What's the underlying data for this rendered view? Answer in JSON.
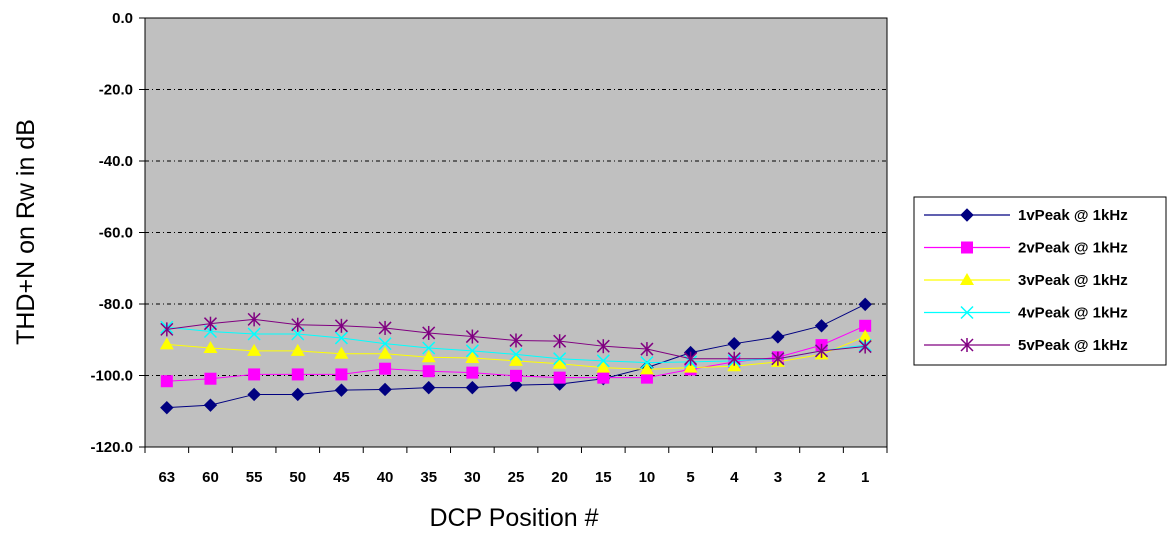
{
  "chart_data": {
    "type": "line",
    "title": "",
    "xlabel": "DCP Position #",
    "ylabel": "THD+N on Rw in dB",
    "categories": [
      "63",
      "60",
      "55",
      "50",
      "45",
      "40",
      "35",
      "30",
      "25",
      "20",
      "15",
      "10",
      "5",
      "4",
      "3",
      "2",
      "1"
    ],
    "ylim": [
      -120,
      0
    ],
    "yticks": [
      "0.0",
      "-20.0",
      "-40.0",
      "-60.0",
      "-80.0",
      "-100.0",
      "-120.0"
    ],
    "ytick_values": [
      0,
      -20,
      -40,
      -60,
      -80,
      -100,
      -120
    ],
    "grid": "horizontal dashed",
    "plot_background": "#c0c0c0",
    "legend_position": "right",
    "series": [
      {
        "name": "1vPeak @ 1kHz",
        "color": "#000080",
        "marker": "diamond",
        "values": [
          -109,
          -108.3,
          -105.3,
          -105.3,
          -104.1,
          -103.9,
          -103.4,
          -103.4,
          -102.7,
          -102.4,
          -100.9,
          -97.8,
          -93.6,
          -91.1,
          -89.2,
          -86.1,
          -80.1
        ]
      },
      {
        "name": "2vPeak @ 1kHz",
        "color": "#ff00ff",
        "marker": "square",
        "values": [
          -101.6,
          -100.9,
          -99.7,
          -99.7,
          -99.7,
          -98.1,
          -98.8,
          -99.2,
          -100.1,
          -100.6,
          -100.6,
          -100.6,
          -98.3,
          -96.2,
          -94.9,
          -91.5,
          -86.1
        ]
      },
      {
        "name": "3vPeak @ 1kHz",
        "color": "#ffff00",
        "marker": "triangle",
        "values": [
          -91.3,
          -92.3,
          -93.1,
          -93.1,
          -93.9,
          -93.9,
          -94.9,
          -95.1,
          -95.9,
          -96.7,
          -97.8,
          -98.3,
          -97.8,
          -97.4,
          -96.2,
          -94.1,
          -89.1
        ]
      },
      {
        "name": "4vPeak @ 1kHz",
        "color": "#00ffff",
        "marker": "x",
        "values": [
          -86.5,
          -87.7,
          -88.4,
          -88.4,
          -89.5,
          -91.1,
          -92.3,
          -93.1,
          -94.1,
          -95.3,
          -95.9,
          -96.4,
          -96.2,
          -95.9,
          -95.3,
          -93.1,
          -91.5
        ]
      },
      {
        "name": "5vPeak @ 1kHz",
        "color": "#800080",
        "marker": "star",
        "values": [
          -87.1,
          -85.5,
          -84.3,
          -85.8,
          -86.1,
          -86.7,
          -88.1,
          -89.1,
          -90.2,
          -90.4,
          -91.8,
          -92.6,
          -95.3,
          -95.3,
          -95.3,
          -93.1,
          -91.9
        ]
      }
    ]
  }
}
